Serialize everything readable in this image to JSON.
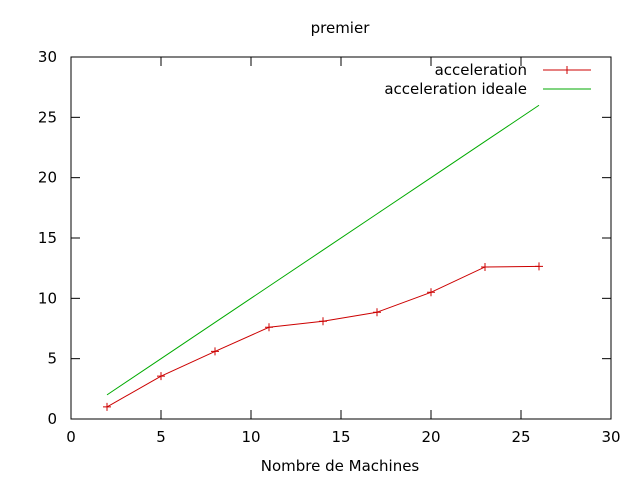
{
  "chart_data": {
    "type": "line",
    "title": "premier",
    "xlabel": "Nombre de Machines",
    "ylabel": "",
    "xlim": [
      0,
      30
    ],
    "ylim": [
      0,
      30
    ],
    "xticks": [
      "0",
      "5",
      "10",
      "15",
      "20",
      "25",
      "30"
    ],
    "yticks": [
      "0",
      "5",
      "10",
      "15",
      "20",
      "25",
      "30"
    ],
    "grid": false,
    "legend_position": "top-right",
    "series": [
      {
        "name": "acceleration",
        "color": "#cc0000",
        "marker": "plus",
        "x": [
          2,
          5,
          8,
          11,
          14,
          17,
          20,
          23,
          26
        ],
        "y": [
          1.0,
          3.55,
          5.6,
          7.6,
          8.1,
          8.85,
          10.5,
          12.6,
          12.65
        ]
      },
      {
        "name": "acceleration ideale",
        "color": "#00aa00",
        "marker": "none",
        "x": [
          2,
          5,
          8,
          11,
          14,
          17,
          20,
          23,
          26
        ],
        "y": [
          2,
          5,
          8,
          11,
          14,
          17,
          20,
          23,
          26
        ]
      }
    ]
  }
}
